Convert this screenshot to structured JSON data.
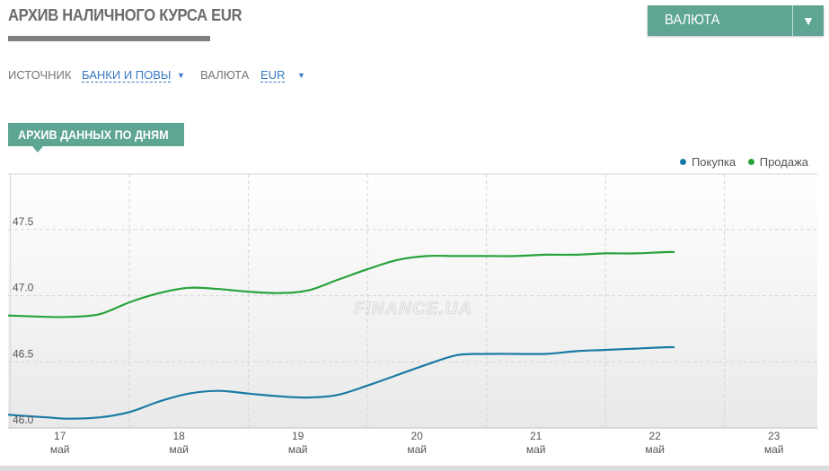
{
  "header": {
    "title": "АРХИВ НАЛИЧНОГО КУРСА EUR",
    "currency_button": "ВАЛЮТА",
    "currency_arrow": "▼"
  },
  "filters": {
    "source_label": "ИСТОЧНИК",
    "source_value": "БАНКИ И ПОВЫ",
    "currency_label": "ВАЛЮТА",
    "currency_value": "EUR",
    "caret": "▼"
  },
  "section": {
    "tab_label": "АРХИВ ДАННЫХ ПО ДНЯМ"
  },
  "colors": {
    "accent": "#5ea593",
    "buy": "#1a7aa5",
    "sell": "#27a33b",
    "grid": "#d5d5d5"
  },
  "chart_data": {
    "type": "line",
    "title": "",
    "xlabel": "",
    "ylabel": "",
    "x_ticks": [
      {
        "day": "17",
        "month": "май"
      },
      {
        "day": "18",
        "month": "май"
      },
      {
        "day": "19",
        "month": "май"
      },
      {
        "day": "20",
        "month": "май"
      },
      {
        "day": "21",
        "month": "май"
      },
      {
        "day": "22",
        "month": "май"
      },
      {
        "day": "23",
        "month": "май"
      }
    ],
    "x_range": [
      16.98,
      23.78
    ],
    "ylim": [
      46.0,
      47.92
    ],
    "y_ticks": [
      "46.0",
      "46.5",
      "47.0",
      "47.5"
    ],
    "grid": true,
    "legend_position": "top-right",
    "series": [
      {
        "name": "Покупка",
        "color": "#1a7aa5",
        "x": [
          16.98,
          17.3,
          17.5,
          17.75,
          18.0,
          18.25,
          18.5,
          18.75,
          19.0,
          19.25,
          19.5,
          19.75,
          20.0,
          20.25,
          20.5,
          20.75,
          21.0,
          21.25,
          21.5,
          21.75,
          22.0,
          22.25,
          22.5,
          22.58
        ],
        "values": [
          46.1,
          46.08,
          46.07,
          46.08,
          46.12,
          46.2,
          46.26,
          46.28,
          46.26,
          46.24,
          46.23,
          46.25,
          46.32,
          46.4,
          46.48,
          46.55,
          46.56,
          46.56,
          46.56,
          46.58,
          46.59,
          46.6,
          46.61,
          46.61
        ]
      },
      {
        "name": "Продажа",
        "color": "#27a33b",
        "x": [
          16.98,
          17.3,
          17.5,
          17.75,
          18.0,
          18.25,
          18.5,
          18.75,
          19.0,
          19.25,
          19.5,
          19.75,
          20.0,
          20.25,
          20.5,
          20.75,
          21.0,
          21.25,
          21.5,
          21.75,
          22.0,
          22.25,
          22.5,
          22.58
        ],
        "values": [
          46.85,
          46.84,
          46.84,
          46.86,
          46.95,
          47.02,
          47.06,
          47.05,
          47.03,
          47.02,
          47.04,
          47.12,
          47.2,
          47.27,
          47.3,
          47.3,
          47.3,
          47.3,
          47.31,
          47.31,
          47.32,
          47.32,
          47.33,
          47.33
        ]
      }
    ]
  }
}
